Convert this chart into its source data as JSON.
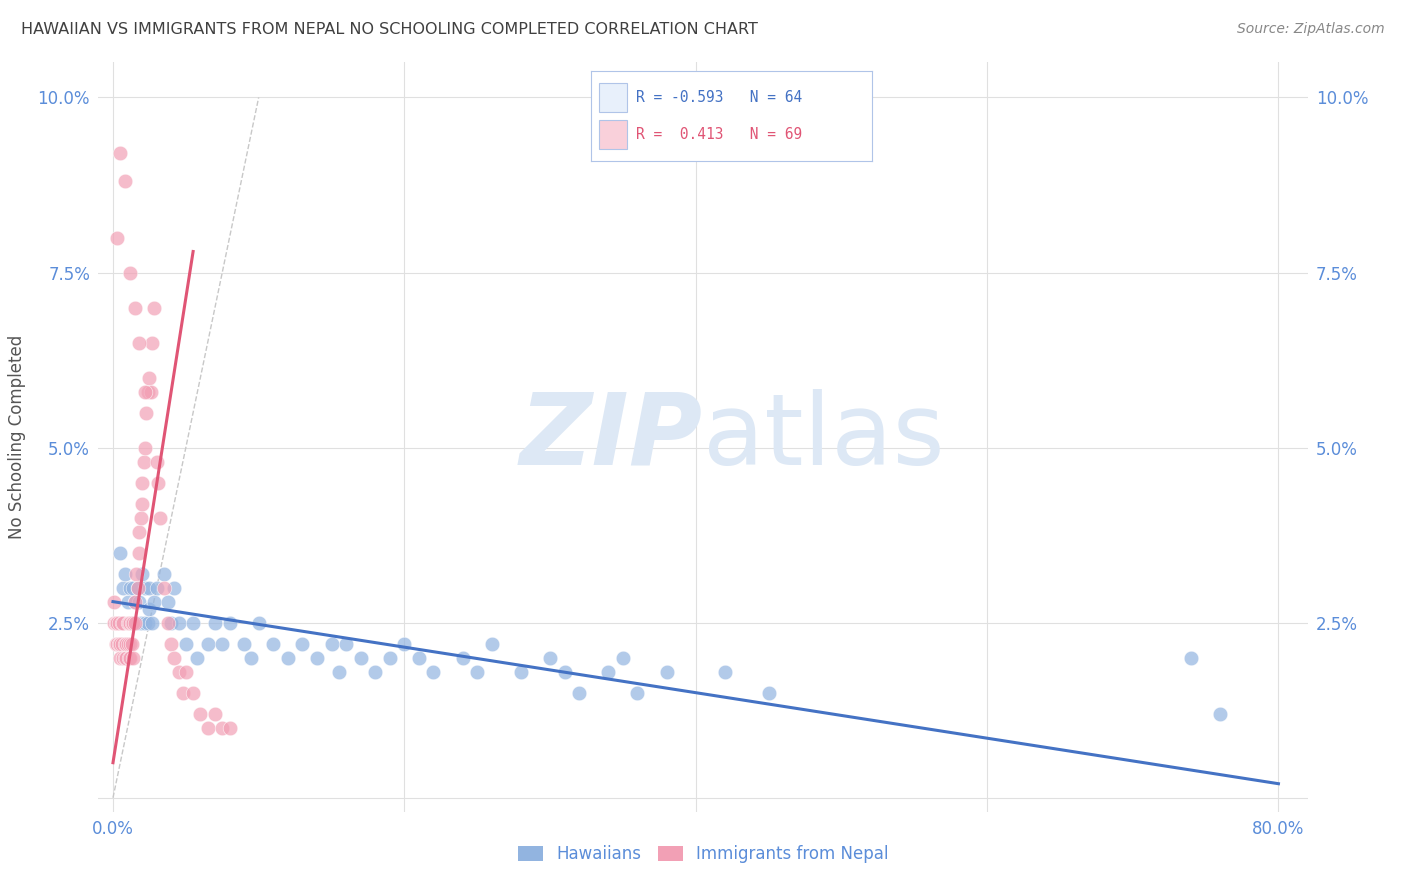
{
  "title": "HAWAIIAN VS IMMIGRANTS FROM NEPAL NO SCHOOLING COMPLETED CORRELATION CHART",
  "source": "Source: ZipAtlas.com",
  "ylabel": "No Schooling Completed",
  "ytick_values": [
    0.0,
    0.025,
    0.05,
    0.075,
    0.1
  ],
  "ytick_labels": [
    "",
    "2.5%",
    "5.0%",
    "7.5%",
    "10.0%"
  ],
  "xtick_values": [
    0.0,
    0.2,
    0.4,
    0.6,
    0.8
  ],
  "xtick_labels": [
    "0.0%",
    "",
    "",
    "",
    "80.0%"
  ],
  "xlim": [
    -0.01,
    0.82
  ],
  "ylim": [
    -0.002,
    0.105
  ],
  "hawaiians_R": -0.593,
  "hawaiians_N": 64,
  "nepal_R": 0.413,
  "nepal_N": 69,
  "hawaiian_color": "#92b4e0",
  "nepal_color": "#f2a0b5",
  "hawaii_line_color": "#4472c4",
  "nepal_line_color": "#e05575",
  "diagonal_color": "#c8c8c8",
  "watermark_zip": "ZIP",
  "watermark_atlas": "atlas",
  "watermark_color": "#dde8f5",
  "background_color": "#ffffff",
  "grid_color": "#e0e0e0",
  "title_color": "#404040",
  "axis_label_color": "#5b8dd9",
  "legend_box_color": "#e8f0fb",
  "legend_box_border": "#b0c4e8",
  "hawaiians_x": [
    0.005,
    0.007,
    0.008,
    0.01,
    0.012,
    0.013,
    0.014,
    0.015,
    0.016,
    0.017,
    0.018,
    0.019,
    0.02,
    0.022,
    0.022,
    0.024,
    0.025,
    0.025,
    0.027,
    0.028,
    0.03,
    0.035,
    0.038,
    0.04,
    0.042,
    0.045,
    0.05,
    0.055,
    0.058,
    0.065,
    0.07,
    0.075,
    0.08,
    0.09,
    0.095,
    0.1,
    0.11,
    0.12,
    0.13,
    0.14,
    0.15,
    0.155,
    0.16,
    0.17,
    0.18,
    0.19,
    0.2,
    0.21,
    0.22,
    0.24,
    0.25,
    0.26,
    0.28,
    0.3,
    0.31,
    0.32,
    0.34,
    0.35,
    0.36,
    0.38,
    0.42,
    0.45,
    0.74,
    0.76
  ],
  "hawaiians_y": [
    0.035,
    0.03,
    0.032,
    0.028,
    0.03,
    0.025,
    0.03,
    0.028,
    0.025,
    0.03,
    0.028,
    0.025,
    0.032,
    0.025,
    0.03,
    0.025,
    0.027,
    0.03,
    0.025,
    0.028,
    0.03,
    0.032,
    0.028,
    0.025,
    0.03,
    0.025,
    0.022,
    0.025,
    0.02,
    0.022,
    0.025,
    0.022,
    0.025,
    0.022,
    0.02,
    0.025,
    0.022,
    0.02,
    0.022,
    0.02,
    0.022,
    0.018,
    0.022,
    0.02,
    0.018,
    0.02,
    0.022,
    0.02,
    0.018,
    0.02,
    0.018,
    0.022,
    0.018,
    0.02,
    0.018,
    0.015,
    0.018,
    0.02,
    0.015,
    0.018,
    0.018,
    0.015,
    0.02,
    0.012
  ],
  "nepal_x": [
    0.001,
    0.001,
    0.002,
    0.002,
    0.003,
    0.003,
    0.004,
    0.004,
    0.005,
    0.005,
    0.006,
    0.006,
    0.007,
    0.007,
    0.008,
    0.008,
    0.009,
    0.009,
    0.01,
    0.01,
    0.011,
    0.011,
    0.012,
    0.012,
    0.012,
    0.013,
    0.013,
    0.014,
    0.014,
    0.015,
    0.015,
    0.016,
    0.017,
    0.018,
    0.018,
    0.019,
    0.02,
    0.02,
    0.021,
    0.022,
    0.023,
    0.024,
    0.025,
    0.026,
    0.027,
    0.028,
    0.03,
    0.031,
    0.032,
    0.035,
    0.038,
    0.04,
    0.042,
    0.045,
    0.048,
    0.05,
    0.055,
    0.06,
    0.065,
    0.07,
    0.075,
    0.08,
    0.003,
    0.005,
    0.008,
    0.012,
    0.015,
    0.018,
    0.022
  ],
  "nepal_y": [
    0.028,
    0.025,
    0.025,
    0.022,
    0.025,
    0.022,
    0.022,
    0.025,
    0.022,
    0.02,
    0.025,
    0.022,
    0.02,
    0.025,
    0.022,
    0.02,
    0.022,
    0.02,
    0.025,
    0.022,
    0.02,
    0.025,
    0.025,
    0.022,
    0.02,
    0.025,
    0.022,
    0.025,
    0.02,
    0.028,
    0.025,
    0.032,
    0.03,
    0.038,
    0.035,
    0.04,
    0.042,
    0.045,
    0.048,
    0.05,
    0.055,
    0.058,
    0.06,
    0.058,
    0.065,
    0.07,
    0.048,
    0.045,
    0.04,
    0.03,
    0.025,
    0.022,
    0.02,
    0.018,
    0.015,
    0.018,
    0.015,
    0.012,
    0.01,
    0.012,
    0.01,
    0.01,
    0.08,
    0.092,
    0.088,
    0.075,
    0.07,
    0.065,
    0.058
  ],
  "hawaii_line_x": [
    0.0,
    0.8
  ],
  "hawaii_line_y": [
    0.028,
    0.002
  ],
  "nepal_line_x": [
    0.0,
    0.055
  ],
  "nepal_line_y": [
    0.005,
    0.078
  ],
  "diag_line_x": [
    0.0,
    0.1
  ],
  "diag_line_y": [
    0.0,
    0.1
  ]
}
